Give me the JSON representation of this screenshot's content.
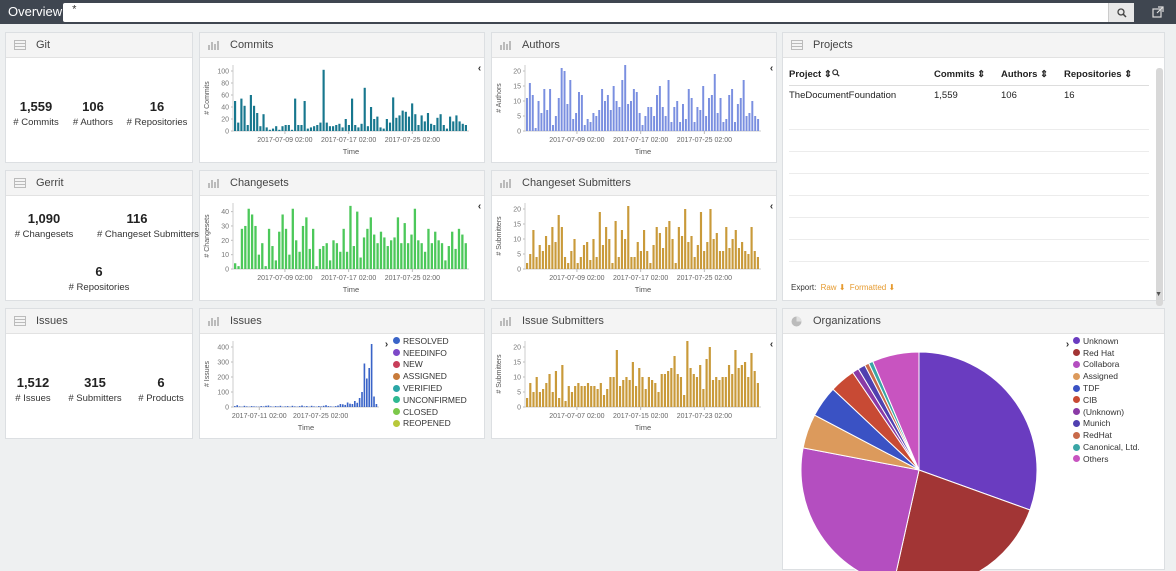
{
  "app": {
    "title": "Overview",
    "search_value": "*"
  },
  "panels": {
    "git": {
      "title": "Git",
      "metrics": [
        {
          "value": "1,559",
          "label": "# Commits"
        },
        {
          "value": "106",
          "label": "# Authors"
        },
        {
          "value": "16",
          "label": "# Repositories"
        }
      ]
    },
    "gerrit": {
      "title": "Gerrit",
      "metrics": [
        {
          "value": "1,090",
          "label": "# Changesets"
        },
        {
          "value": "116",
          "label": "# Changeset Submitters"
        },
        {
          "value": "6",
          "label": "# Repositories"
        }
      ]
    },
    "issues_metric": {
      "title": "Issues",
      "metrics": [
        {
          "value": "1,512",
          "label": "# Issues"
        },
        {
          "value": "315",
          "label": "# Submitters"
        },
        {
          "value": "6",
          "label": "# Products"
        }
      ]
    },
    "commits": {
      "title": "Commits"
    },
    "authors": {
      "title": "Authors"
    },
    "changesets": {
      "title": "Changesets"
    },
    "changeset_submitters": {
      "title": "Changeset Submitters"
    },
    "issues_chart": {
      "title": "Issues"
    },
    "issue_submitters": {
      "title": "Issue Submitters"
    },
    "projects": {
      "title": "Projects",
      "columns": [
        "Project",
        "Commits",
        "Authors",
        "Repositories"
      ],
      "rows": [
        {
          "project": "TheDocumentFoundation",
          "commits": "1,559",
          "authors": "106",
          "repositories": "16"
        }
      ],
      "export_label": "Export:",
      "raw_label": "Raw",
      "formatted_label": "Formatted"
    },
    "organizations": {
      "title": "Organizations"
    }
  },
  "colors": {
    "commits": "#17778e",
    "authors": "#7a8fe0",
    "changesets": "#4cc85a",
    "submitters": "#c99a3a",
    "issues": "#3a64c8"
  },
  "chart_data": [
    {
      "id": "commits",
      "type": "bar",
      "xlabel": "Time",
      "ylabel": "# Commits",
      "yticks": [
        0,
        20,
        40,
        60,
        80,
        100
      ],
      "ylim": [
        0,
        110
      ],
      "xticks": [
        "2017-07-09 02:00",
        "2017-07-17 02:00",
        "2017-07-25 02:00"
      ],
      "values": [
        50,
        14,
        54,
        42,
        10,
        60,
        42,
        30,
        8,
        28,
        6,
        2,
        4,
        8,
        2,
        8,
        10,
        10,
        2,
        54,
        10,
        10,
        50,
        4,
        6,
        8,
        10,
        14,
        102,
        14,
        8,
        8,
        10,
        12,
        6,
        20,
        10,
        54,
        10,
        6,
        12,
        72,
        8,
        40,
        20,
        24,
        6,
        4,
        20,
        14,
        56,
        22,
        26,
        34,
        32,
        24,
        46,
        28,
        10,
        26,
        16,
        30,
        12,
        10,
        22,
        28,
        10,
        4,
        24,
        16,
        26,
        16,
        12,
        10
      ]
    },
    {
      "id": "authors",
      "type": "bar",
      "xlabel": "Time",
      "ylabel": "# Authors",
      "yticks": [
        0,
        5,
        10,
        15,
        20
      ],
      "ylim": [
        0,
        22
      ],
      "xticks": [
        "2017-07-09 02:00",
        "2017-07-17 02:00",
        "2017-07-25 02:00"
      ],
      "values": [
        11,
        16,
        12,
        1,
        10,
        6,
        14,
        7,
        14,
        2,
        5,
        11,
        21,
        20,
        9,
        17,
        4,
        6,
        13,
        12,
        2,
        4,
        3,
        6,
        5,
        7,
        14,
        10,
        12,
        7,
        15,
        10,
        8,
        17,
        22,
        9,
        10,
        14,
        13,
        6,
        2,
        5,
        8,
        8,
        5,
        12,
        15,
        8,
        5,
        17,
        3,
        8,
        10,
        3,
        9,
        4,
        14,
        11,
        3,
        8,
        7,
        15,
        5,
        11,
        12,
        19,
        6,
        11,
        3,
        4,
        12,
        14,
        3,
        9,
        11,
        17,
        5,
        6,
        10,
        5,
        4
      ]
    },
    {
      "id": "changesets",
      "type": "bar",
      "xlabel": "Time",
      "ylabel": "# Changesets",
      "yticks": [
        0,
        10,
        20,
        30,
        40
      ],
      "ylim": [
        0,
        46
      ],
      "xticks": [
        "2017-07-09 02:00",
        "2017-07-17 02:00",
        "2017-07-25 02:00"
      ],
      "values": [
        4,
        2,
        28,
        30,
        42,
        38,
        30,
        10,
        18,
        2,
        28,
        16,
        6,
        26,
        38,
        28,
        10,
        42,
        20,
        12,
        30,
        36,
        14,
        28,
        2,
        14,
        16,
        18,
        6,
        20,
        18,
        12,
        28,
        12,
        44,
        16,
        40,
        8,
        22,
        28,
        36,
        24,
        18,
        26,
        22,
        16,
        20,
        22,
        36,
        18,
        32,
        18,
        24,
        42,
        20,
        18,
        12,
        28,
        18,
        26,
        20,
        18,
        6,
        16,
        26,
        14,
        28,
        24,
        18
      ]
    },
    {
      "id": "changeset_submitters",
      "type": "bar",
      "xlabel": "Time",
      "ylabel": "# Submitters",
      "yticks": [
        0,
        5,
        10,
        15,
        20
      ],
      "ylim": [
        0,
        22
      ],
      "xticks": [
        "2017-07-09 02:00",
        "2017-07-17 02:00",
        "2017-07-25 02:00"
      ],
      "values": [
        2,
        5,
        13,
        4,
        8,
        6,
        11,
        8,
        14,
        9,
        18,
        14,
        4,
        2,
        6,
        10,
        2,
        4,
        8,
        9,
        3,
        10,
        4,
        19,
        8,
        14,
        10,
        2,
        16,
        4,
        13,
        10,
        21,
        4,
        4,
        9,
        6,
        13,
        6,
        2,
        8,
        14,
        12,
        7,
        14,
        16,
        10,
        2,
        14,
        11,
        20,
        9,
        11,
        4,
        8,
        19,
        6,
        9,
        20,
        10,
        12,
        6,
        6,
        14,
        7,
        10,
        13,
        7,
        9,
        6,
        5,
        14,
        6,
        4
      ]
    },
    {
      "id": "issues_chart",
      "type": "bar",
      "xlabel": "Time",
      "ylabel": "# Issues",
      "yticks": [
        0,
        100,
        200,
        300,
        400
      ],
      "ylim": [
        0,
        440
      ],
      "xticks": [
        "2017-07-11 02:00",
        "2017-07-25 02:00"
      ],
      "values": [
        6,
        12,
        4,
        2,
        8,
        4,
        2,
        6,
        4,
        3,
        2,
        6,
        4,
        8,
        10,
        4,
        2,
        6,
        4,
        8,
        2,
        4,
        6,
        2,
        8,
        4,
        2,
        6,
        10,
        4,
        6,
        2,
        8,
        4,
        2,
        6,
        4,
        8,
        12,
        6,
        4,
        2,
        6,
        10,
        20,
        18,
        14,
        30,
        22,
        20,
        40,
        28,
        60,
        100,
        290,
        190,
        260,
        420,
        70,
        20
      ],
      "legend": [
        "RESOLVED",
        "NEEDINFO",
        "NEW",
        "ASSIGNED",
        "VERIFIED",
        "UNCONFIRMED",
        "CLOSED",
        "REOPENED"
      ],
      "legend_colors": [
        "#3a64c8",
        "#7d48c8",
        "#c83e5a",
        "#c87b3a",
        "#2aa6a6",
        "#2fb892",
        "#7cc84a",
        "#b8c83a"
      ]
    },
    {
      "id": "issue_submitters",
      "type": "bar",
      "xlabel": "Time",
      "ylabel": "# Submitters",
      "yticks": [
        0,
        5,
        10,
        15,
        20
      ],
      "ylim": [
        0,
        22
      ],
      "xticks": [
        "2017-07-07 02:00",
        "2017-07-15 02:00",
        "2017-07-23 02:00"
      ],
      "values": [
        3,
        8,
        5,
        10,
        5,
        6,
        8,
        11,
        5,
        12,
        3,
        14,
        2,
        7,
        5,
        7,
        8,
        7,
        7,
        8,
        7,
        7,
        6,
        8,
        4,
        6,
        10,
        10,
        19,
        7,
        9,
        10,
        9,
        15,
        7,
        13,
        10,
        6,
        10,
        9,
        8,
        5,
        11,
        11,
        12,
        13,
        17,
        11,
        10,
        4,
        23,
        13,
        11,
        10,
        14,
        6,
        16,
        20,
        9,
        10,
        9,
        10,
        10,
        14,
        11,
        19,
        13,
        14,
        15,
        10,
        18,
        12,
        8
      ]
    },
    {
      "id": "organizations",
      "type": "pie",
      "labels": [
        "Unknown",
        "Red Hat",
        "Collabora",
        "Assigned",
        "TDF",
        "CIB",
        "(Unknown)",
        "Munich",
        "RedHat",
        "Canonical, Ltd.",
        "Others"
      ],
      "values": [
        30.5,
        23.0,
        24.5,
        4.7,
        4.3,
        3.5,
        0.9,
        1.0,
        0.6,
        0.6,
        6.4
      ],
      "colors": [
        "#6a3cc0",
        "#a23535",
        "#b44ec0",
        "#dc9a5c",
        "#3a52c4",
        "#c84a34",
        "#8a3aa6",
        "#5040b0",
        "#c86a4a",
        "#3aa6a6",
        "#c854c0"
      ]
    }
  ]
}
